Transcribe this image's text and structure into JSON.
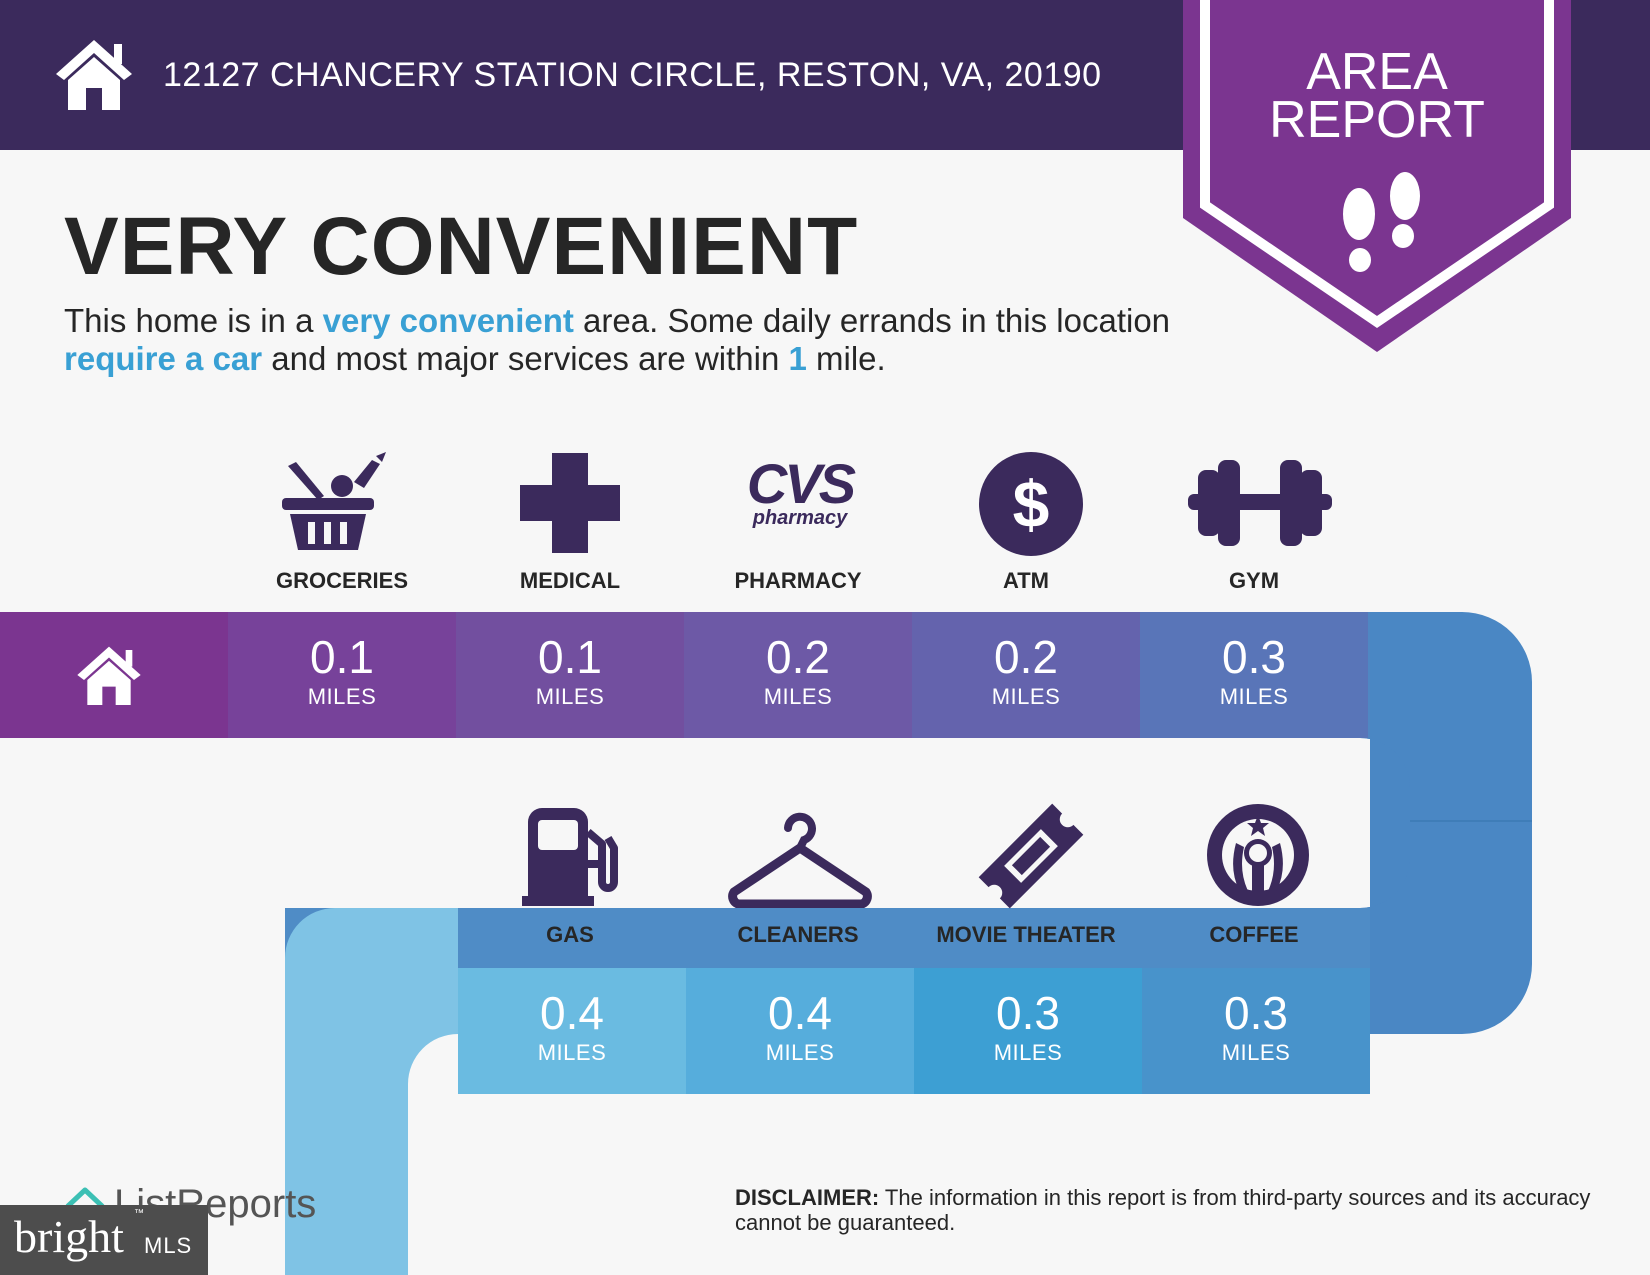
{
  "header": {
    "address": "12127 CHANCERY STATION CIRCLE, RESTON, VA, 20190"
  },
  "badge": {
    "line1": "AREA",
    "line2": "REPORT"
  },
  "headline": "VERY CONVENIENT",
  "summary": {
    "p1": "This home is in a ",
    "h1": "very convenient",
    "p2": " area. Some daily errands in this location ",
    "h2": "require a car",
    "p3": " and most major services are within ",
    "h3": "1",
    "p4": " mile."
  },
  "amenities_row1": [
    {
      "label": "GROCERIES",
      "distance": "0.1",
      "unit": "MILES",
      "icon": "grocery-basket-icon"
    },
    {
      "label": "MEDICAL",
      "distance": "0.1",
      "unit": "MILES",
      "icon": "medical-cross-icon"
    },
    {
      "label": "PHARMACY",
      "distance": "0.2",
      "unit": "MILES",
      "icon": "cvs-pharmacy-logo"
    },
    {
      "label": "ATM",
      "distance": "0.2",
      "unit": "MILES",
      "icon": "dollar-icon"
    },
    {
      "label": "GYM",
      "distance": "0.3",
      "unit": "MILES",
      "icon": "dumbbell-icon"
    }
  ],
  "amenities_row2": [
    {
      "label": "GAS",
      "distance": "0.4",
      "unit": "MILES",
      "icon": "gas-pump-icon"
    },
    {
      "label": "CLEANERS",
      "distance": "0.4",
      "unit": "MILES",
      "icon": "hanger-icon"
    },
    {
      "label": "MOVIE THEATER",
      "distance": "0.3",
      "unit": "MILES",
      "icon": "ticket-icon"
    },
    {
      "label": "COFFEE",
      "distance": "0.3",
      "unit": "MILES",
      "icon": "starbucks-logo"
    }
  ],
  "logos": {
    "cvs_main": "CVS",
    "cvs_sub": "pharmacy",
    "dollar": "$"
  },
  "disclaimer": {
    "label": "DISCLAIMER:",
    "text": " The information in this report is from third-party sources and its accuracy cannot be guaranteed."
  },
  "footer": {
    "brand": "ListReports",
    "bright": "bright",
    "mls": "MLS",
    "tm": "™"
  },
  "colors": {
    "header": "#3b2a5c",
    "badge": "#7b3590",
    "accent_text": "#39a0d4",
    "row1": [
      "#7b3590",
      "#77429a",
      "#724f9f",
      "#6d59a6",
      "#6463ad",
      "#5975b8",
      "#4f86c2"
    ],
    "row2": [
      "#7fc3e5",
      "#6abbe1",
      "#56addc",
      "#3d9fd3",
      "#4893cb",
      "#4f8cc6"
    ]
  }
}
